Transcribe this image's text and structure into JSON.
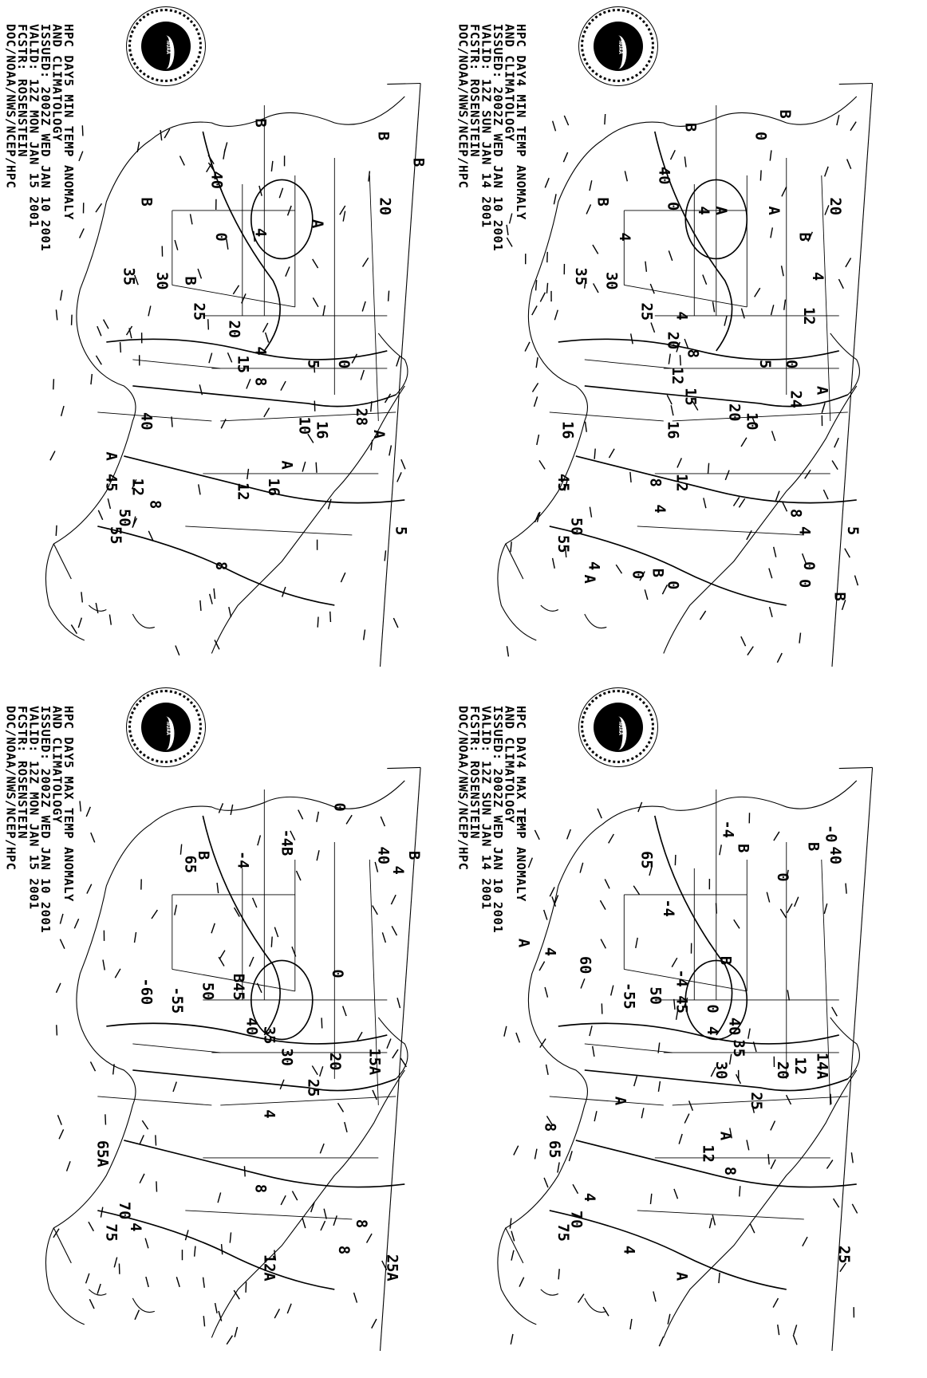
{
  "logo_text": "NOAA",
  "panels": [
    {
      "id": "day5-min",
      "header": [
        "HPC DAY5 MIN TEMP ANOMALY",
        "AND CLIMATOLOGY",
        "ISSUED: 2002Z WED JAN 10 2001",
        "VALID: 12Z MON JAN 15 2001",
        "FCSTR: ROSENSTEIN",
        "DOC/NOAA/NWS/NCEP/HPC"
      ],
      "labels": [
        "B",
        "B",
        "B",
        "40",
        "20",
        "B",
        "A",
        "4",
        "0",
        "35",
        "30",
        "B",
        "25",
        "20",
        "4",
        "15",
        "8",
        "5",
        "0",
        "10",
        "16",
        "28",
        "A",
        "A",
        "16",
        "12",
        "40",
        "A",
        "45",
        "12",
        "8",
        "50",
        "55",
        "5",
        "8"
      ]
    },
    {
      "id": "day4-min",
      "header": [
        "HPC DAY4 MIN TEMP ANOMALY",
        "AND CLIMATOLOGY",
        "ISSUED: 2002Z WED JAN 10 2001",
        "VALID: 12Z SUN JAN 14 2001",
        "FCSTR: ROSENSTEIN",
        "DOC/NOAA/NWS/NCEP/HPC"
      ],
      "labels": [
        "B",
        "B",
        "0",
        "40",
        "0",
        "A",
        "4",
        "A",
        "B",
        "20",
        "B",
        "4",
        "35",
        "30",
        "4",
        "25",
        "12",
        "4",
        "20",
        "8",
        "12",
        "5",
        "0",
        "24",
        "A",
        "15",
        "20",
        "10",
        "16",
        "16",
        "12",
        "8",
        "4",
        "8",
        "4",
        "45",
        "50",
        "55",
        "4",
        "A",
        "0",
        "B",
        "0",
        "5",
        "0",
        "0",
        "B"
      ]
    },
    {
      "id": "day5-max",
      "header": [
        "HPC DAY5 MAX TEMP ANOMALY",
        "AND CLIMATOLOGY",
        "ISSUED: 2002Z WED JAN 10 2001",
        "VALID: 12Z MON JAN 15 2001",
        "FCSTR: ROSENSTEIN",
        "DOC/NOAA/NWS/NCEP/HPC"
      ],
      "labels": [
        "0",
        "-4B",
        "40",
        "4",
        "B",
        "B",
        "65",
        "-4",
        "0",
        "-60",
        "50",
        "-55",
        "B45",
        "40",
        "35",
        "30",
        "20",
        "15A",
        "25",
        "4",
        "65A",
        "8",
        "70",
        "4",
        "75",
        "8",
        "8",
        "12A",
        "25A"
      ]
    },
    {
      "id": "day4-max",
      "header": [
        "HPC DAY4 MAX TEMP ANOMALY",
        "AND CLIMATOLOGY",
        "ISSUED: 2002Z WED JAN 10 2001",
        "VALID: 12Z SUN JAN 14 2001",
        "FCSTR: ROSENSTEIN",
        "DOC/NOAA/NWS/NCEP/HPC"
      ],
      "labels": [
        "-0",
        "40",
        "B",
        "B",
        "65",
        "0",
        "-4",
        "-4",
        "B",
        "A",
        "4",
        "60",
        "-55",
        "50",
        "-4",
        "45",
        "0",
        "40",
        "4",
        "35",
        "30",
        "20",
        "12",
        "14A",
        "25",
        "A",
        "A",
        "12",
        "8",
        "8",
        "65",
        "70",
        "4",
        "75",
        "4",
        "25",
        "A"
      ]
    }
  ]
}
